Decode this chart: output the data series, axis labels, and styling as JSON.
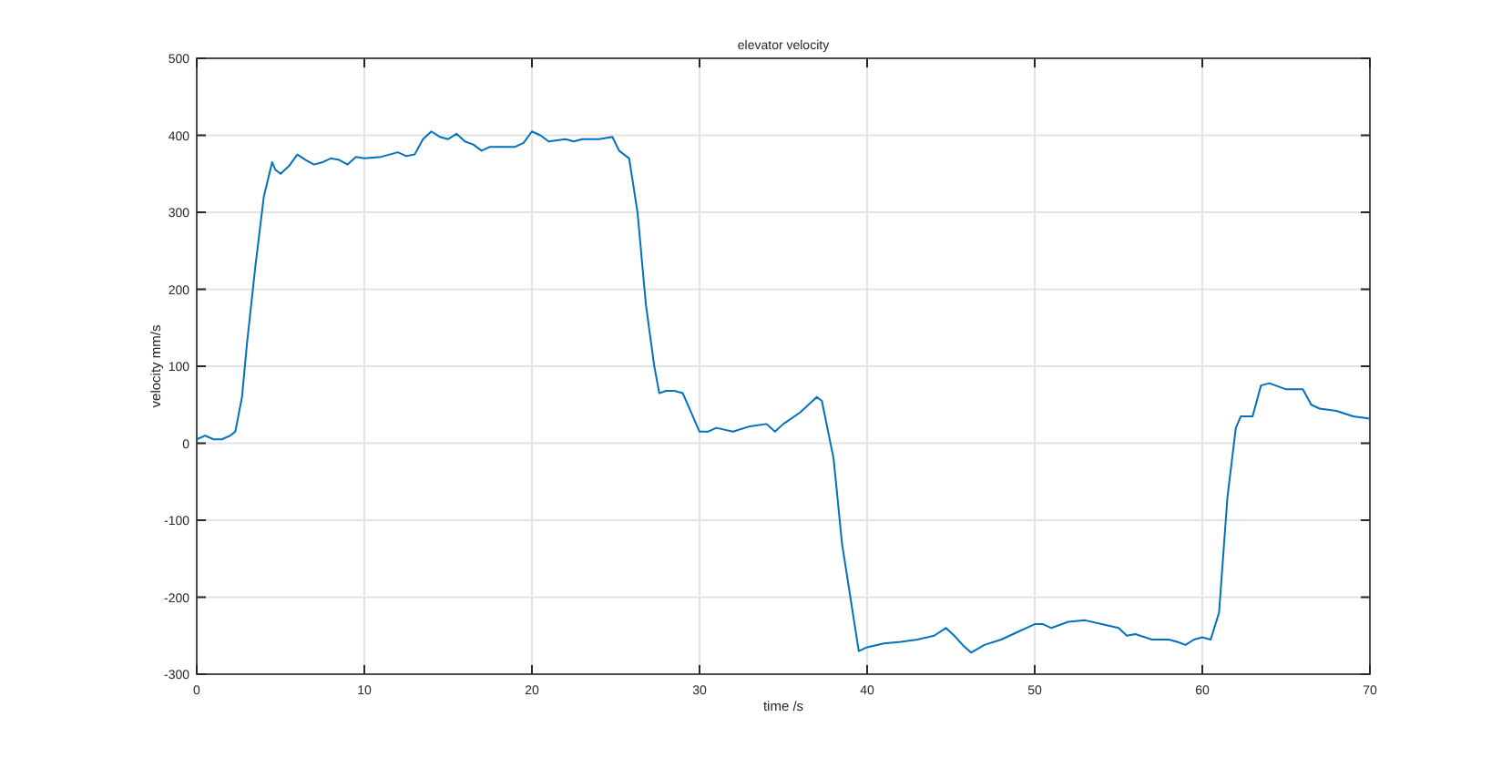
{
  "chart_data": {
    "type": "line",
    "title": "elevator velocity",
    "xlabel": "time /s",
    "ylabel": "velocity mm/s",
    "xlim": [
      0,
      70
    ],
    "xticks": [
      0,
      10,
      20,
      30,
      40,
      50,
      60,
      70
    ],
    "ylim": [
      -300,
      500
    ],
    "yticks": [
      -300,
      -200,
      -100,
      0,
      100,
      200,
      300,
      400,
      500
    ],
    "grid": true,
    "series": [
      {
        "color": "#0072bd",
        "x": [
          0,
          0.5,
          1,
          1.5,
          2,
          2.3,
          2.7,
          3,
          3.5,
          4,
          4.5,
          4.7,
          5,
          5.5,
          6,
          6.5,
          7,
          7.5,
          8,
          8.5,
          9,
          9.5,
          10,
          11,
          12,
          12.5,
          13,
          13.5,
          14,
          14.5,
          15,
          15.5,
          16,
          16.5,
          17,
          17.5,
          18,
          19,
          19.5,
          20,
          20.5,
          21,
          22,
          22.5,
          23,
          24,
          24.8,
          25.2,
          25.8,
          26.3,
          26.8,
          27.3,
          27.6,
          28,
          28.5,
          29,
          29.5,
          30,
          30.5,
          31,
          32,
          33,
          34,
          34.5,
          35,
          36,
          37,
          37.3,
          38,
          38.5,
          39,
          39.5,
          40,
          41,
          42,
          43,
          44,
          44.7,
          45.2,
          45.7,
          46.2,
          47,
          48,
          48.5,
          49,
          50,
          50.5,
          51,
          52,
          53,
          54,
          55,
          55.5,
          56,
          57,
          58,
          58.5,
          59,
          59.5,
          60,
          60.5,
          61,
          61.5,
          62,
          62.3,
          63,
          63.5,
          64,
          65,
          66,
          66.5,
          67,
          68,
          69,
          70
        ],
        "values": [
          5,
          10,
          5,
          5,
          10,
          15,
          60,
          130,
          230,
          320,
          365,
          355,
          350,
          360,
          375,
          368,
          362,
          365,
          370,
          368,
          362,
          372,
          370,
          372,
          378,
          373,
          375,
          395,
          405,
          398,
          395,
          402,
          392,
          388,
          380,
          385,
          385,
          385,
          390,
          405,
          400,
          392,
          395,
          392,
          395,
          395,
          398,
          380,
          370,
          300,
          180,
          100,
          65,
          68,
          68,
          65,
          40,
          15,
          15,
          20,
          15,
          22,
          25,
          15,
          25,
          40,
          60,
          55,
          -20,
          -130,
          -200,
          -270,
          -265,
          -260,
          -258,
          -255,
          -250,
          -240,
          -250,
          -262,
          -272,
          -262,
          -255,
          -250,
          -245,
          -235,
          -235,
          -240,
          -232,
          -230,
          -235,
          -240,
          -250,
          -248,
          -255,
          -255,
          -258,
          -262,
          -255,
          -252,
          -255,
          -220,
          -70,
          20,
          35,
          35,
          75,
          78,
          70,
          70,
          50,
          45,
          42,
          35,
          32
        ]
      }
    ]
  }
}
